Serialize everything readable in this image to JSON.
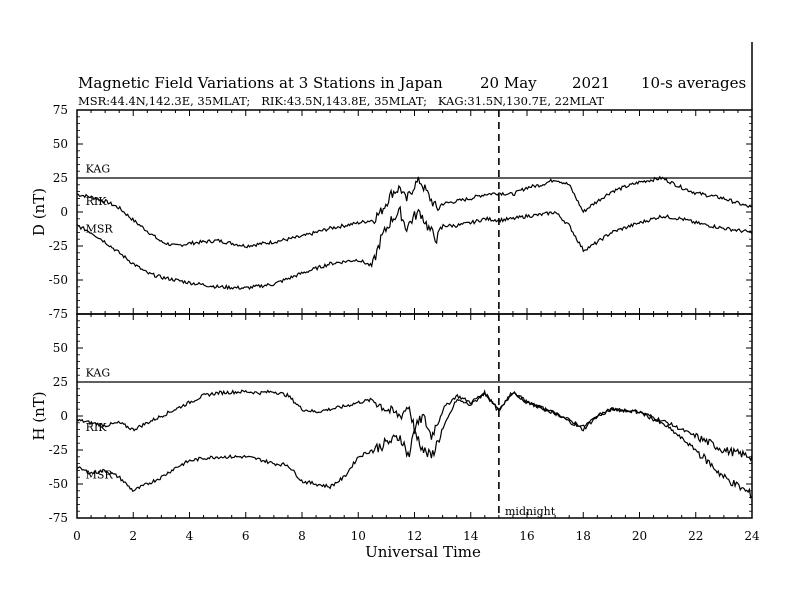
{
  "chart_data": {
    "type": "line",
    "title_parts": [
      "Magnetic Field Variations at 3 Stations in Japan",
      "20 May",
      "2021",
      "10-s averages"
    ],
    "subtitle": "MSR:44.4N,142.3E, 35MLAT;   RIK:43.5N,143.8E, 35MLAT;   KAG:31.5N,130.7E, 22MLAT",
    "xlabel": "Universal Time",
    "xlim": [
      0,
      24
    ],
    "xticks": [
      "0",
      "2",
      "4",
      "6",
      "8",
      "10",
      "12",
      "14",
      "16",
      "18",
      "20",
      "22",
      "24"
    ],
    "annotation": {
      "text": "midnight",
      "x": 15
    },
    "panels": [
      {
        "ylabel": "D (nT)",
        "ylim": [
          -75,
          75
        ],
        "yticks": [
          "75",
          "50",
          "25",
          "0",
          "-25",
          "-50",
          "-75"
        ],
        "series": [
          {
            "name": "KAG",
            "label_x": 0.2,
            "label_y": 29,
            "x": [
              0,
              24
            ],
            "y": [
              25,
              25
            ]
          },
          {
            "name": "RIK",
            "label_x": 0.2,
            "label_y": 5,
            "x": [
              0,
              0.5,
              1,
              1.5,
              2,
              2.5,
              3,
              3.5,
              4,
              5,
              6,
              7,
              8,
              9,
              10,
              10.5,
              10.8,
              11.2,
              11.5,
              11.7,
              12,
              12.2,
              12.5,
              12.8,
              13,
              13.5,
              14,
              14.5,
              15,
              15.5,
              16,
              16.5,
              17,
              17.5,
              18,
              18.3,
              19,
              20,
              20.8,
              21.5,
              22,
              23,
              24
            ],
            "y": [
              13,
              11,
              8,
              3,
              -6,
              -14,
              -22,
              -25,
              -23,
              -21,
              -25,
              -22,
              -18,
              -12,
              -8,
              -6,
              0,
              14,
              18,
              8,
              20,
              23,
              12,
              2,
              6,
              8,
              10,
              13,
              14,
              13,
              18,
              20,
              24,
              20,
              0,
              5,
              15,
              22,
              25,
              18,
              14,
              10,
              3
            ]
          },
          {
            "name": "MSR",
            "label_x": 0.2,
            "label_y": -15,
            "x": [
              0,
              0.5,
              1,
              1.5,
              2,
              2.5,
              3,
              3.5,
              4,
              5,
              6,
              7,
              8,
              9,
              10,
              10.5,
              10.8,
              11.2,
              11.5,
              11.7,
              12,
              12.2,
              12.5,
              12.8,
              13,
              13.5,
              14,
              14.5,
              15,
              15.5,
              16,
              16.5,
              17,
              17.5,
              18,
              18.3,
              19,
              20,
              20.8,
              21.5,
              22,
              23,
              24
            ],
            "y": [
              -10,
              -15,
              -22,
              -30,
              -38,
              -45,
              -48,
              -50,
              -52,
              -55,
              -56,
              -53,
              -45,
              -38,
              -35,
              -40,
              -20,
              -5,
              0,
              -12,
              -3,
              0,
              -12,
              -20,
              -10,
              -10,
              -8,
              -5,
              -6,
              -5,
              -3,
              -2,
              0,
              -10,
              -28,
              -25,
              -15,
              -8,
              -3,
              -5,
              -8,
              -12,
              -15
            ]
          }
        ]
      },
      {
        "ylabel": "H (nT)",
        "ylim": [
          -75,
          75
        ],
        "yticks": [
          "75",
          "50",
          "25",
          "0",
          "-25",
          "-50",
          "-75"
        ],
        "series": [
          {
            "name": "KAG",
            "label_x": 0.2,
            "label_y": 29,
            "x": [
              0,
              24
            ],
            "y": [
              25,
              25
            ]
          },
          {
            "name": "RIK",
            "label_x": 0.2,
            "label_y": -11,
            "x": [
              0,
              0.5,
              1,
              1.5,
              2,
              2.5,
              3,
              3.5,
              4,
              4.5,
              5,
              6,
              6.5,
              7,
              7.5,
              8,
              8.5,
              9,
              9.5,
              10,
              10.5,
              11,
              11.5,
              11.8,
              12,
              12.3,
              12.6,
              13,
              13.5,
              14,
              14.5,
              15,
              15.5,
              16,
              17,
              18,
              18.5,
              19,
              20,
              21,
              22,
              23,
              24
            ],
            "y": [
              -3,
              -5,
              -7,
              -5,
              -10,
              -5,
              0,
              5,
              10,
              15,
              17,
              18,
              17,
              18,
              15,
              5,
              3,
              5,
              7,
              10,
              12,
              5,
              0,
              8,
              -10,
              0,
              -15,
              5,
              15,
              10,
              17,
              5,
              18,
              10,
              2,
              -10,
              0,
              5,
              3,
              -5,
              -15,
              -25,
              -30
            ]
          },
          {
            "name": "MSR",
            "label_x": 0.2,
            "label_y": -46,
            "x": [
              0,
              0.5,
              1,
              1.5,
              2,
              2.5,
              3,
              3.5,
              4,
              4.5,
              5,
              6,
              6.5,
              7,
              7.5,
              8,
              8.5,
              9,
              9.5,
              10,
              10.5,
              11,
              11.5,
              11.8,
              12,
              12.3,
              12.6,
              13,
              13.5,
              14,
              14.5,
              15,
              15.5,
              16,
              17,
              18,
              18.5,
              19,
              20,
              21,
              22,
              23,
              24
            ],
            "y": [
              -38,
              -42,
              -40,
              -45,
              -55,
              -50,
              -45,
              -38,
              -33,
              -31,
              -30,
              -30,
              -32,
              -35,
              -36,
              -48,
              -50,
              -52,
              -45,
              -30,
              -25,
              -20,
              -15,
              -30,
              -10,
              -25,
              -30,
              -10,
              12,
              8,
              17,
              3,
              18,
              10,
              2,
              -8,
              0,
              5,
              3,
              -8,
              -25,
              -45,
              -58
            ]
          }
        ]
      }
    ]
  }
}
